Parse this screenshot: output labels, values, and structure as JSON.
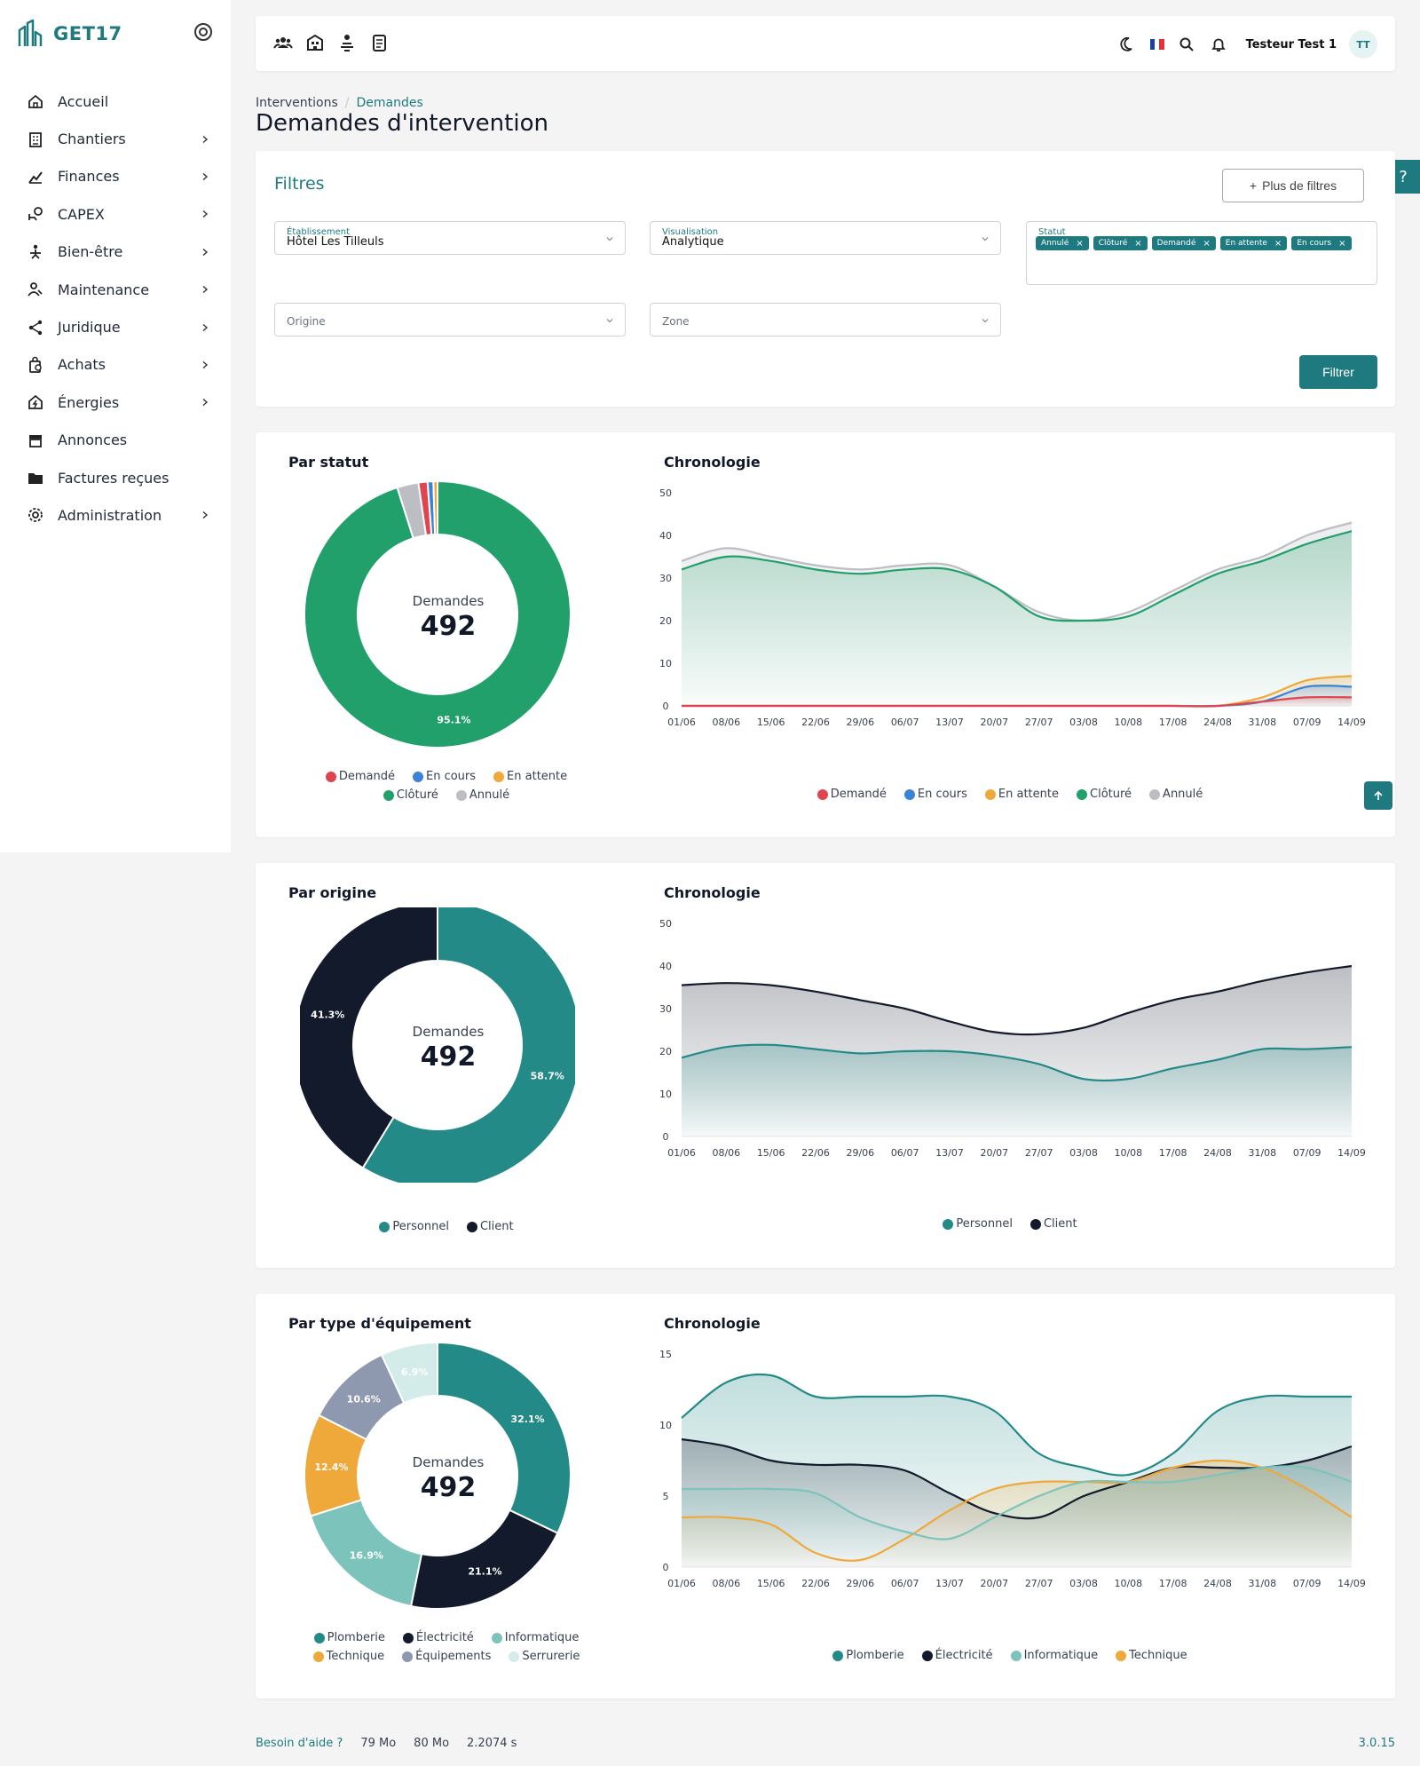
{
  "brand": {
    "name": "GET17"
  },
  "sidebar": {
    "items": [
      {
        "label": "Accueil",
        "icon": "home-icon",
        "has_children": false
      },
      {
        "label": "Chantiers",
        "icon": "building-icon",
        "has_children": true
      },
      {
        "label": "Finances",
        "icon": "chart-icon",
        "has_children": true
      },
      {
        "label": "CAPEX",
        "icon": "capex-icon",
        "has_children": true
      },
      {
        "label": "Bien-être",
        "icon": "wellbeing-icon",
        "has_children": true
      },
      {
        "label": "Maintenance",
        "icon": "maintenance-icon",
        "has_children": true
      },
      {
        "label": "Juridique",
        "icon": "share-icon",
        "has_children": true
      },
      {
        "label": "Achats",
        "icon": "shopping-icon",
        "has_children": true
      },
      {
        "label": "Énergies",
        "icon": "energy-icon",
        "has_children": true
      },
      {
        "label": "Annonces",
        "icon": "store-icon",
        "has_children": false
      },
      {
        "label": "Factures reçues",
        "icon": "folder-icon",
        "has_children": false
      },
      {
        "label": "Administration",
        "icon": "gear-icon",
        "has_children": true
      }
    ]
  },
  "header": {
    "user_name": "Testeur Test 1",
    "user_initials": "TT"
  },
  "breadcrumb": {
    "parent": "Interventions",
    "current": "Demandes"
  },
  "page": {
    "title": "Demandes d'intervention"
  },
  "filters": {
    "title": "Filtres",
    "more_filters": "Plus de filtres",
    "etablissement": {
      "label": "Établissement",
      "value": "Hôtel Les Tilleuls"
    },
    "visualisation": {
      "label": "Visualisation",
      "value": "Analytique"
    },
    "statut": {
      "label": "Statut",
      "chips": [
        "Annulé",
        "Clôturé",
        "Demandé",
        "En attente",
        "En cours"
      ]
    },
    "origine": {
      "placeholder": "Origine"
    },
    "zone": {
      "placeholder": "Zone"
    },
    "submit": "Filtrer"
  },
  "colors": {
    "accent": "#1f7a80",
    "demande": "#e0454f",
    "en_cours": "#3b82d8",
    "en_attente": "#efa83a",
    "cloture": "#22a06b",
    "annule": "#bcbec4",
    "personnel": "#238a87",
    "client": "#121a2b",
    "plomberie": "#238a87",
    "electricite": "#121a2b",
    "informatique": "#7cc4bb",
    "technique": "#efa83a",
    "equipements": "#8e99b0",
    "serrurerie": "#d3ebe9"
  },
  "x_dates": [
    "01/06",
    "08/06",
    "15/06",
    "22/06",
    "29/06",
    "06/07",
    "13/07",
    "20/07",
    "27/07",
    "03/08",
    "10/08",
    "17/08",
    "24/08",
    "31/08",
    "07/09",
    "14/09"
  ],
  "section1": {
    "donut_title": "Par statut",
    "timeline_title": "Chronologie",
    "center_label": "Demandes",
    "center_value": "492",
    "slice_labels": {
      "cloture": "95.1%"
    },
    "legend": [
      "Demandé",
      "En cours",
      "En attente",
      "Clôturé",
      "Annulé"
    ]
  },
  "section2": {
    "donut_title": "Par origine",
    "timeline_title": "Chronologie",
    "center_label": "Demandes",
    "center_value": "492",
    "slice_labels": {
      "personnel": "58.7%",
      "client": "41.3%"
    },
    "legend": [
      "Personnel",
      "Client"
    ]
  },
  "section3": {
    "donut_title": "Par type d'équipement",
    "timeline_title": "Chronologie",
    "center_label": "Demandes",
    "center_value": "492",
    "slice_labels": {
      "plomberie": "32.1%",
      "electricite": "21.1%",
      "informatique": "16.9%",
      "technique": "12.4%",
      "equipements": "10.6%",
      "serrurerie": "6.9%"
    },
    "legend": [
      "Plomberie",
      "Électricité",
      "Informatique",
      "Technique",
      "Équipements",
      "Serrurerie"
    ],
    "timeline_legend": [
      "Plomberie",
      "Électricité",
      "Informatique",
      "Technique"
    ]
  },
  "chart_data": [
    {
      "type": "pie",
      "title": "Par statut",
      "categories": [
        "Clôturé",
        "Annulé",
        "Demandé",
        "En cours",
        "En attente"
      ],
      "values": [
        95.1,
        2.6,
        1.1,
        0.7,
        0.5
      ]
    },
    {
      "type": "area",
      "title": "Chronologie",
      "x": [
        "01/06",
        "08/06",
        "15/06",
        "22/06",
        "29/06",
        "06/07",
        "13/07",
        "20/07",
        "27/07",
        "03/08",
        "10/08",
        "17/08",
        "24/08",
        "31/08",
        "07/09",
        "14/09"
      ],
      "ylim": [
        0,
        50
      ],
      "series": [
        {
          "name": "Demandé",
          "values": [
            0,
            0,
            0,
            0,
            0,
            0,
            0,
            0,
            0,
            0,
            0,
            0,
            0,
            1,
            2,
            2
          ]
        },
        {
          "name": "En cours",
          "values": [
            0,
            0,
            0,
            0,
            0,
            0,
            0,
            0,
            0,
            0,
            0,
            0,
            0,
            1,
            4.5,
            4.5
          ]
        },
        {
          "name": "En attente",
          "values": [
            0,
            0,
            0,
            0,
            0,
            0,
            0,
            0,
            0,
            0,
            0,
            0,
            0,
            2,
            6,
            7
          ]
        },
        {
          "name": "Clôturé",
          "values": [
            32,
            35,
            34,
            32,
            31,
            32,
            32,
            28,
            21,
            20,
            21,
            26,
            31,
            34,
            38,
            41
          ]
        },
        {
          "name": "Annulé",
          "values": [
            34,
            37,
            35,
            33,
            32,
            33,
            33,
            28,
            22,
            20,
            22,
            27,
            32,
            35,
            40,
            43
          ]
        }
      ]
    },
    {
      "type": "pie",
      "title": "Par origine",
      "categories": [
        "Personnel",
        "Client"
      ],
      "values": [
        58.7,
        41.3
      ]
    },
    {
      "type": "area",
      "title": "Chronologie",
      "x": [
        "01/06",
        "08/06",
        "15/06",
        "22/06",
        "29/06",
        "06/07",
        "13/07",
        "20/07",
        "27/07",
        "03/08",
        "10/08",
        "17/08",
        "24/08",
        "31/08",
        "07/09",
        "14/09"
      ],
      "ylim": [
        0,
        50
      ],
      "series": [
        {
          "name": "Personnel",
          "values": [
            18.5,
            21,
            21.5,
            20.5,
            19.5,
            20,
            20,
            19,
            17,
            13.5,
            13.5,
            16,
            18,
            20.5,
            20.5,
            21
          ]
        },
        {
          "name": "Client",
          "values": [
            35.5,
            36,
            35.5,
            34,
            32,
            30,
            27,
            24.5,
            24,
            25.5,
            29,
            32,
            34,
            36.5,
            38.5,
            40
          ]
        }
      ]
    },
    {
      "type": "pie",
      "title": "Par type d'équipement",
      "categories": [
        "Plomberie",
        "Électricité",
        "Informatique",
        "Technique",
        "Équipements",
        "Serrurerie"
      ],
      "values": [
        32.1,
        21.1,
        16.9,
        12.4,
        10.6,
        6.9
      ]
    },
    {
      "type": "area",
      "title": "Chronologie",
      "x": [
        "01/06",
        "08/06",
        "15/06",
        "22/06",
        "29/06",
        "06/07",
        "13/07",
        "20/07",
        "27/07",
        "03/08",
        "10/08",
        "17/08",
        "24/08",
        "31/08",
        "07/09",
        "14/09"
      ],
      "ylim": [
        0,
        15
      ],
      "series": [
        {
          "name": "Plomberie",
          "values": [
            10.5,
            13,
            13.5,
            12,
            12,
            12,
            12,
            11,
            8,
            7,
            6.5,
            8,
            11,
            12,
            12,
            12
          ]
        },
        {
          "name": "Électricité",
          "values": [
            9,
            8.5,
            7.5,
            7.2,
            7.2,
            6.8,
            5.2,
            3.8,
            3.5,
            5,
            6,
            7,
            7,
            7,
            7.5,
            8.5
          ]
        },
        {
          "name": "Informatique",
          "values": [
            5.5,
            5.5,
            5.5,
            5.2,
            3.5,
            2.5,
            2,
            3.5,
            5,
            6,
            6,
            6,
            6.5,
            7,
            7,
            6
          ]
        },
        {
          "name": "Technique",
          "values": [
            3.5,
            3.5,
            3,
            1,
            0.5,
            2,
            4,
            5.5,
            6,
            6,
            6,
            7,
            7.5,
            7,
            5.5,
            3.5
          ]
        }
      ]
    }
  ]
}
